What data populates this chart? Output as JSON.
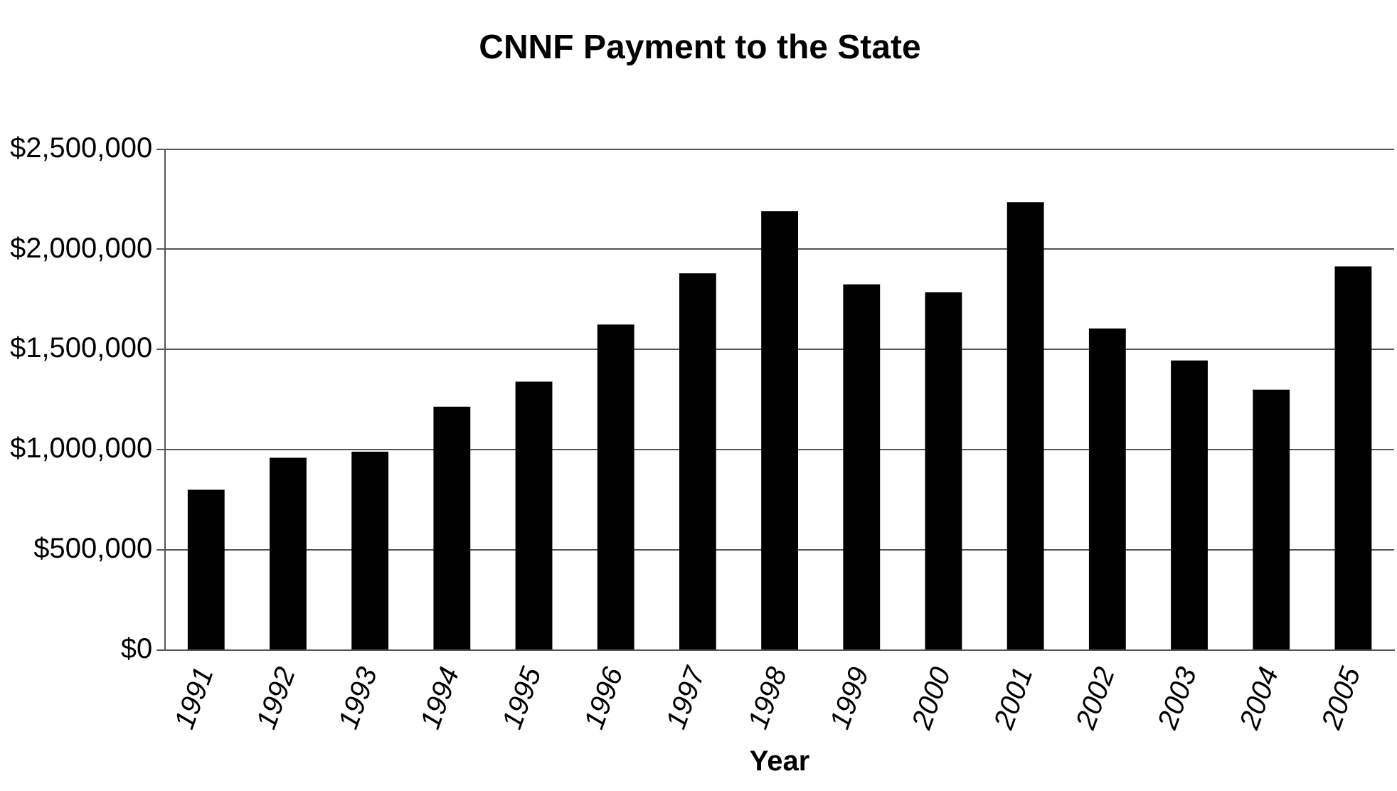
{
  "chart_data": {
    "type": "bar",
    "title": "CNNF Payment to the State",
    "xlabel": "Year",
    "categories": [
      "1991",
      "1992",
      "1993",
      "1994",
      "1995",
      "1996",
      "1997",
      "1998",
      "1999",
      "2000",
      "2001",
      "2002",
      "2003",
      "2004",
      "2005"
    ],
    "values": [
      800000,
      960000,
      990000,
      1215000,
      1340000,
      1625000,
      1880000,
      2190000,
      1825000,
      1785000,
      2235000,
      1605000,
      1445000,
      1300000,
      1915000
    ],
    "color": "#000000",
    "ylim": [
      0,
      2500000
    ],
    "yticks": [
      {
        "value": 0,
        "label": "$0"
      },
      {
        "value": 500000,
        "label": "$500,000"
      },
      {
        "value": 1000000,
        "label": "$1,000,000"
      },
      {
        "value": 1500000,
        "label": "$1,500,000"
      },
      {
        "value": 2000000,
        "label": "$2,000,000"
      },
      {
        "value": 2500000,
        "label": "$2,500,000"
      }
    ],
    "grid": "y",
    "legend": false
  }
}
